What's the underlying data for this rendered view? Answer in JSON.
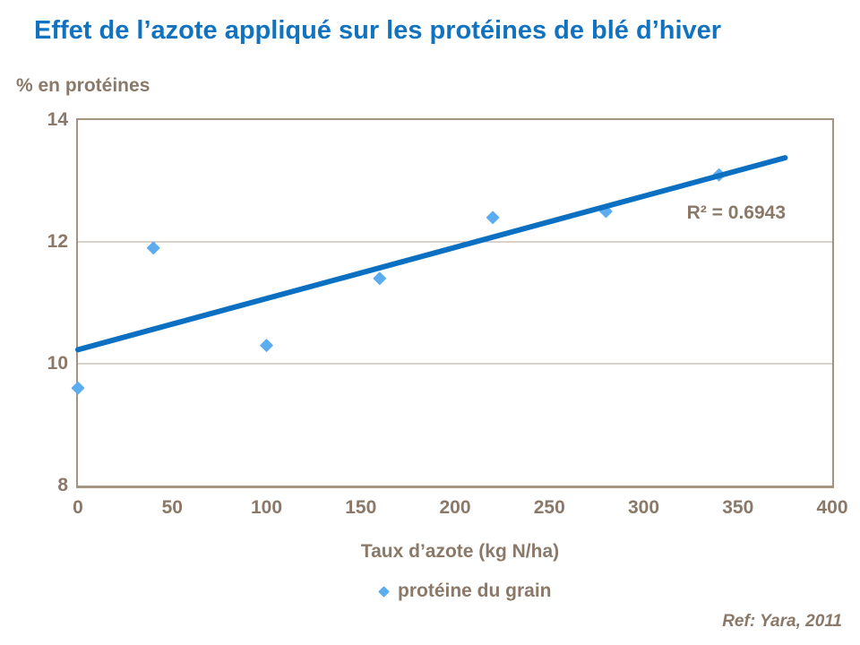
{
  "title": "Effet de l’azote appliqué sur les protéines de blé d’hiver",
  "y_axis_label": "% en protéines",
  "x_axis_title": "Taux d’azote (kg N/ha)",
  "annotation_r2": "R² = 0.6943",
  "legend": {
    "marker": "diamond-icon",
    "label": "protéine du grain"
  },
  "reference": "Ref: Yara, 2011",
  "colors": {
    "title_blue": "#1173BF",
    "trend_blue": "#0C70C2",
    "marker_blue": "#5CACF0",
    "text_brown": "#8A7968",
    "axis_line": "#A59580",
    "gridline": "#B3A695"
  },
  "chart_data": {
    "type": "scatter",
    "title": "Effet de l’azote appliqué sur les protéines de blé d’hiver",
    "xlabel": "Taux d’azote (kg N/ha)",
    "ylabel": "% en protéines",
    "xlim": [
      0,
      400
    ],
    "ylim": [
      8,
      14
    ],
    "x_ticks": [
      0,
      50,
      100,
      150,
      200,
      250,
      300,
      350,
      400
    ],
    "y_ticks": [
      8,
      10,
      12,
      14
    ],
    "gridlines_y": [
      10,
      12
    ],
    "grid": "horizontal only",
    "legend_position": "bottom center",
    "series": [
      {
        "name": "protéine du grain",
        "marker": "diamond",
        "points": [
          [
            0,
            9.6
          ],
          [
            40,
            11.9
          ],
          [
            100,
            10.3
          ],
          [
            160,
            11.4
          ],
          [
            220,
            12.4
          ],
          [
            280,
            12.5
          ],
          [
            340,
            13.1
          ]
        ]
      }
    ],
    "trendline": {
      "type": "linear",
      "x": [
        0,
        375
      ],
      "y": [
        10.23,
        13.38
      ],
      "slope": 0.00839,
      "intercept": 10.23,
      "r_squared": 0.6943
    }
  }
}
